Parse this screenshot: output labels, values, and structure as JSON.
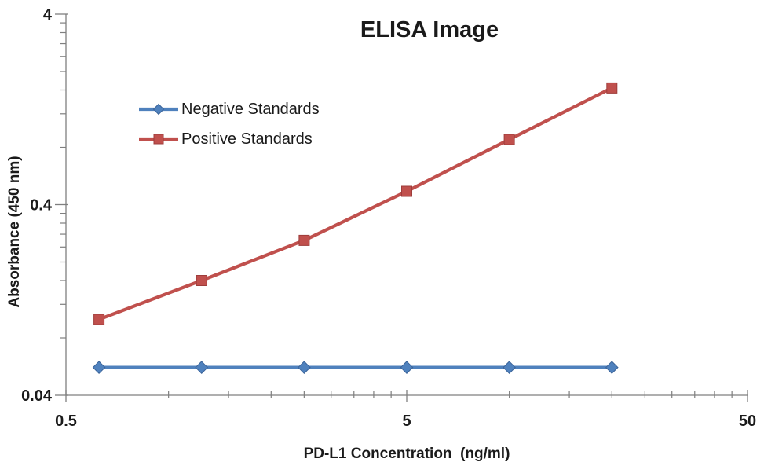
{
  "chart": {
    "background": "#ffffff",
    "axis_color": "#7f7f7f",
    "text_color": "#1a1a1a"
  },
  "chart_data": {
    "type": "line",
    "title": "ELISA Image",
    "xlabel": "PD-L1 Concentration  (ng/ml)",
    "ylabel": "Absorbance (450 nm)",
    "x_scale": "log",
    "y_scale": "log",
    "xlim": [
      0.5,
      50
    ],
    "ylim": [
      0.04,
      4
    ],
    "grid": false,
    "legend_position": "upper-left-inside",
    "x": [
      0.625,
      1.25,
      2.5,
      5,
      10,
      20
    ],
    "series": [
      {
        "name": "Negative Standards",
        "color": "#4F81BD",
        "border_color": "#3A6399",
        "marker": "diamond",
        "values": [
          0.056,
          0.056,
          0.056,
          0.056,
          0.056,
          0.056
        ]
      },
      {
        "name": "Positive Standards",
        "color": "#C0504D",
        "border_color": "#9E3D3B",
        "marker": "square",
        "values": [
          0.1,
          0.16,
          0.26,
          0.47,
          0.88,
          1.64
        ]
      }
    ],
    "x_major_ticks": [
      0.5,
      5,
      50
    ],
    "x_tick_labels": [
      "0.5",
      "5",
      "50"
    ],
    "x_minor_ticks": [
      1,
      1.5,
      2,
      2.5,
      3,
      3.5,
      4,
      4.5,
      10,
      15,
      20,
      25,
      30,
      35,
      40,
      45
    ],
    "y_major_ticks": [
      0.04,
      0.4,
      4
    ],
    "y_tick_labels": [
      "0.04",
      "0.4",
      "4"
    ],
    "y_minor_ticks": [
      0.08,
      0.12,
      0.16,
      0.2,
      0.24,
      0.28,
      0.32,
      0.36,
      0.8,
      1.2,
      1.6,
      2.0,
      2.4,
      2.8,
      3.2,
      3.6
    ]
  }
}
